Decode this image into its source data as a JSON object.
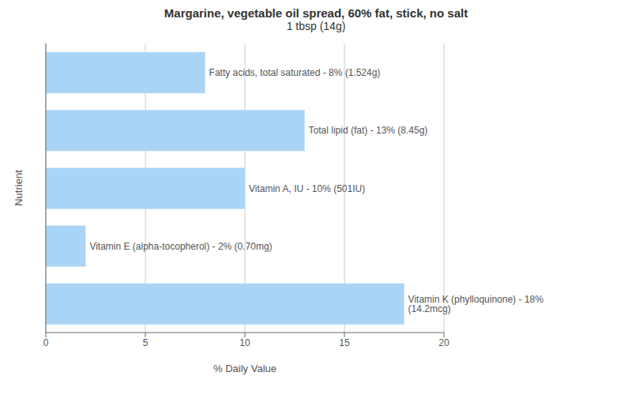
{
  "chart_data": {
    "type": "bar",
    "orientation": "horizontal",
    "title": "Margarine, vegetable oil spread, 60% fat, stick, no salt",
    "subtitle": "1 tbsp (14g)",
    "categories": [
      "Vitamin K (phylloquinone) - 18% (14.2mcg)",
      "Vitamin E (alpha-tocopherol) - 2% (0.70mg)",
      "Vitamin A, IU - 10% (501IU)",
      "Total lipid (fat) - 13% (8.45g)",
      "Fatty acids, total saturated - 8% (1.524g)"
    ],
    "values": [
      18,
      2,
      10,
      13,
      8
    ],
    "color": "#aad4f5",
    "xlabel": "% Daily Value",
    "ylabel": "Nutrient",
    "xlim": [
      0,
      20
    ],
    "xticks": [
      0,
      5,
      10,
      15,
      20
    ],
    "grid": true,
    "tick_labels": "x"
  }
}
